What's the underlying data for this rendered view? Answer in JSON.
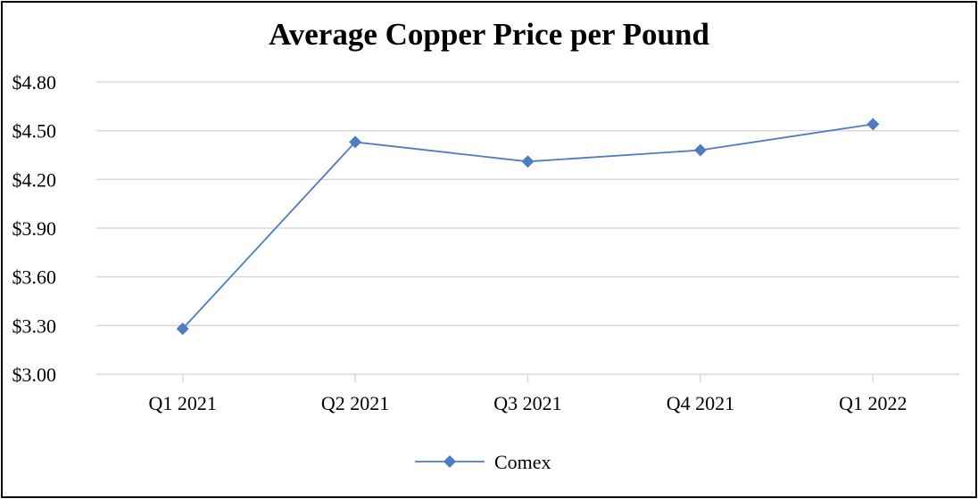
{
  "chart_data": {
    "type": "line",
    "title": "Average Copper Price per Pound",
    "xlabel": "",
    "ylabel": "",
    "categories": [
      "Q1 2021",
      "Q2 2021",
      "Q3 2021",
      "Q4 2021",
      "Q1 2022"
    ],
    "series": [
      {
        "name": "Comex",
        "values": [
          3.28,
          4.43,
          4.31,
          4.38,
          4.54
        ]
      }
    ],
    "ylim": [
      3.0,
      4.8
    ],
    "y_ticks": [
      "$3.00",
      "$3.30",
      "$3.60",
      "$3.90",
      "$4.20",
      "$4.50",
      "$4.80"
    ],
    "y_tick_values": [
      3.0,
      3.3,
      3.6,
      3.9,
      4.2,
      4.5,
      4.8
    ],
    "grid": true,
    "legend_position": "bottom-center",
    "series_color": "#4F7BC3",
    "gridline_color": "#D9D9D9",
    "marker": "diamond"
  }
}
